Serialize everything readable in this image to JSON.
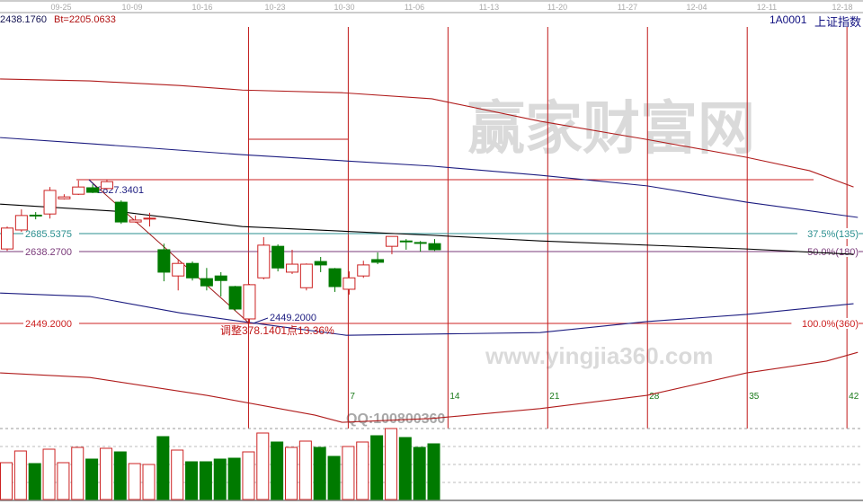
{
  "header": {
    "left_value": "2438.1760",
    "bt_value": "Bt=2205.0633",
    "symbol": "1A0001",
    "name": "上证指数"
  },
  "date_axis": [
    "09-25",
    "10-09",
    "10-16",
    "10-23",
    "10-30",
    "11-06",
    "11-13",
    "11-20",
    "11-27",
    "12-04",
    "12-11",
    "12-18"
  ],
  "watermarks": [
    "赢家财富网",
    "www.yingjia360.com",
    "QQ:100800360"
  ],
  "colors": {
    "up": "#cc2222",
    "down": "#007a00",
    "grid": "#b0b0b0",
    "fib_37": "#2a8f8f",
    "fib_50": "#7a3a7a",
    "fib_100": "#cc2222",
    "ma": "#000000",
    "band_inner": "#1c1c80",
    "band_outer": "#b01c1c"
  },
  "chart_data": {
    "type": "candlestick",
    "ylim": [
      2175,
      3229
    ],
    "candles": [
      {
        "o": 2645,
        "h": 2704,
        "l": 2640,
        "c": 2700
      },
      {
        "o": 2695,
        "h": 2749,
        "l": 2690,
        "c": 2733
      },
      {
        "o": 2734,
        "h": 2742,
        "l": 2723,
        "c": 2732
      },
      {
        "o": 2737,
        "h": 2808,
        "l": 2725,
        "c": 2799
      },
      {
        "o": 2777,
        "h": 2789,
        "l": 2775,
        "c": 2782
      },
      {
        "o": 2789,
        "h": 2825,
        "l": 2787,
        "c": 2808
      },
      {
        "o": 2806,
        "h": 2815,
        "l": 2792,
        "c": 2794
      },
      {
        "o": 2804,
        "h": 2827.34,
        "l": 2801,
        "c": 2822
      },
      {
        "o": 2768,
        "h": 2773,
        "l": 2711,
        "c": 2716
      },
      {
        "o": 2716,
        "h": 2733,
        "l": 2714,
        "c": 2721
      },
      {
        "o": 2725,
        "h": 2740,
        "l": 2704,
        "c": 2726
      },
      {
        "o": 2643,
        "h": 2659,
        "l": 2560,
        "c": 2584
      },
      {
        "o": 2574,
        "h": 2617,
        "l": 2536,
        "c": 2607
      },
      {
        "o": 2607,
        "h": 2612,
        "l": 2562,
        "c": 2569
      },
      {
        "o": 2567,
        "h": 2595,
        "l": 2536,
        "c": 2548
      },
      {
        "o": 2574,
        "h": 2584,
        "l": 2520,
        "c": 2562
      },
      {
        "o": 2546,
        "h": 2548,
        "l": 2482,
        "c": 2487
      },
      {
        "o": 2461,
        "h": 2553,
        "l": 2449.2,
        "c": 2551
      },
      {
        "o": 2569,
        "h": 2676,
        "l": 2565,
        "c": 2655
      },
      {
        "o": 2652,
        "h": 2657,
        "l": 2586,
        "c": 2595
      },
      {
        "o": 2584,
        "h": 2643,
        "l": 2579,
        "c": 2605
      },
      {
        "o": 2543,
        "h": 2607,
        "l": 2536,
        "c": 2605
      },
      {
        "o": 2612,
        "h": 2624,
        "l": 2584,
        "c": 2603
      },
      {
        "o": 2593,
        "h": 2595,
        "l": 2532,
        "c": 2546
      },
      {
        "o": 2539,
        "h": 2586,
        "l": 2525,
        "c": 2569
      },
      {
        "o": 2574,
        "h": 2614,
        "l": 2569,
        "c": 2603
      },
      {
        "o": 2617,
        "h": 2636,
        "l": 2605,
        "c": 2610
      },
      {
        "o": 2652,
        "h": 2678,
        "l": 2631,
        "c": 2678
      },
      {
        "o": 2666,
        "h": 2671,
        "l": 2643,
        "c": 2665
      },
      {
        "o": 2662,
        "h": 2666,
        "l": 2638,
        "c": 2661
      },
      {
        "o": 2659,
        "h": 2671,
        "l": 2640,
        "c": 2643
      }
    ],
    "volume": [
      41,
      54,
      40,
      56,
      41,
      58,
      45,
      57,
      53,
      40,
      39,
      70,
      55,
      42,
      42,
      45,
      46,
      53,
      74,
      64,
      58,
      65,
      58,
      48,
      59,
      64,
      71,
      79,
      69,
      58,
      62
    ],
    "lines": {
      "band_outer_upper": [
        [
          0.5,
          3092
        ],
        [
          6.8,
          3087
        ],
        [
          13.1,
          3075
        ],
        [
          17.5,
          3063
        ],
        [
          24.5,
          3056
        ],
        [
          30.8,
          3040
        ],
        [
          38.4,
          2981
        ],
        [
          45.9,
          2933
        ],
        [
          52.9,
          2886
        ],
        [
          57.3,
          2851
        ],
        [
          60.4,
          2808
        ]
      ],
      "band_inner_upper": [
        [
          0.5,
          2938
        ],
        [
          6.8,
          2922
        ],
        [
          17.5,
          2893
        ],
        [
          30.8,
          2863
        ],
        [
          38.4,
          2839
        ],
        [
          45.9,
          2811
        ],
        [
          52.9,
          2768
        ],
        [
          60.7,
          2728
        ]
      ],
      "ma": [
        [
          0.5,
          2763
        ],
        [
          8.7,
          2744
        ],
        [
          17.5,
          2704
        ],
        [
          30.8,
          2681
        ],
        [
          38.4,
          2666
        ],
        [
          52.9,
          2645
        ],
        [
          60.4,
          2631
        ]
      ],
      "band_inner_lower": [
        [
          0.5,
          2529
        ],
        [
          6.8,
          2520
        ],
        [
          13.1,
          2477
        ],
        [
          17.5,
          2454
        ],
        [
          24.8,
          2418
        ],
        [
          38.4,
          2425
        ],
        [
          45.9,
          2454
        ],
        [
          52.9,
          2473
        ],
        [
          60.4,
          2501
        ]
      ],
      "band_outer_lower": [
        [
          0.5,
          2319
        ],
        [
          6.8,
          2307
        ],
        [
          15.0,
          2260
        ],
        [
          22.6,
          2208
        ],
        [
          24.5,
          2189
        ],
        [
          30.8,
          2199
        ],
        [
          38.4,
          2225
        ],
        [
          45.9,
          2260
        ],
        [
          52.9,
          2319
        ],
        [
          58.5,
          2350
        ],
        [
          60.7,
          2373
        ]
      ]
    },
    "fib_levels": [
      {
        "value": 2827.3401,
        "label": "2827.3401",
        "right": ""
      },
      {
        "value": 2685.5375,
        "label": "2685.5375",
        "right": "37.5%(135)"
      },
      {
        "value": 2638.27,
        "label": "2638.2700",
        "right": "50.0%(180)"
      },
      {
        "value": 2449.2,
        "label": "2449.2000",
        "right": "100.0%(360)"
      }
    ],
    "low_label": "2449.2000",
    "adjust_label": "调整378.1401点13.36%",
    "time_lines": {
      "start_bar": 18,
      "step": 7,
      "labels": [
        "",
        "7",
        "14",
        "21",
        "28",
        "35",
        "42"
      ]
    }
  }
}
